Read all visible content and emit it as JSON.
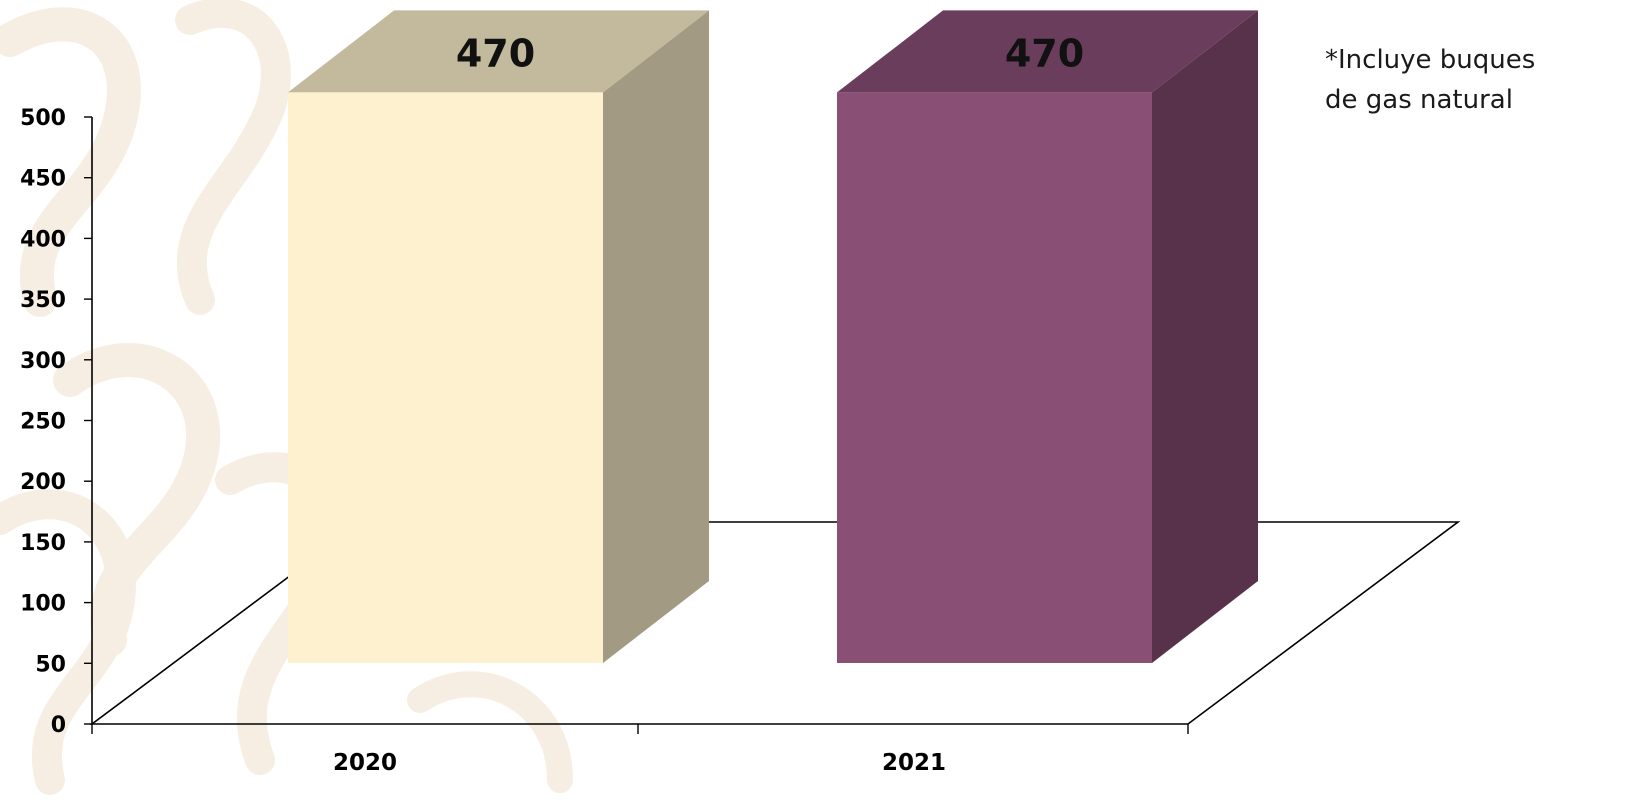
{
  "chart_data": {
    "type": "bar",
    "categories": [
      "2020",
      "2021"
    ],
    "values": [
      470,
      470
    ],
    "ylim": [
      0,
      500
    ],
    "yticks": [
      0,
      50,
      100,
      150,
      200,
      250,
      300,
      350,
      400,
      450,
      500
    ],
    "grid": false,
    "legend": "none",
    "three_d": true,
    "bar_colors": [
      {
        "front": "#fdf1cf",
        "side": "#a29a82",
        "top": "#c3b99c"
      },
      {
        "front": "#8a4f74",
        "side": "#58324a",
        "top": "#6b3d5c"
      }
    ],
    "annotation": {
      "lines": [
        "*Incluye buques",
        "de gas natural"
      ]
    }
  },
  "colors": {
    "background": "#ffffff",
    "axis": "#000000",
    "watermark": "#f6eee2"
  }
}
